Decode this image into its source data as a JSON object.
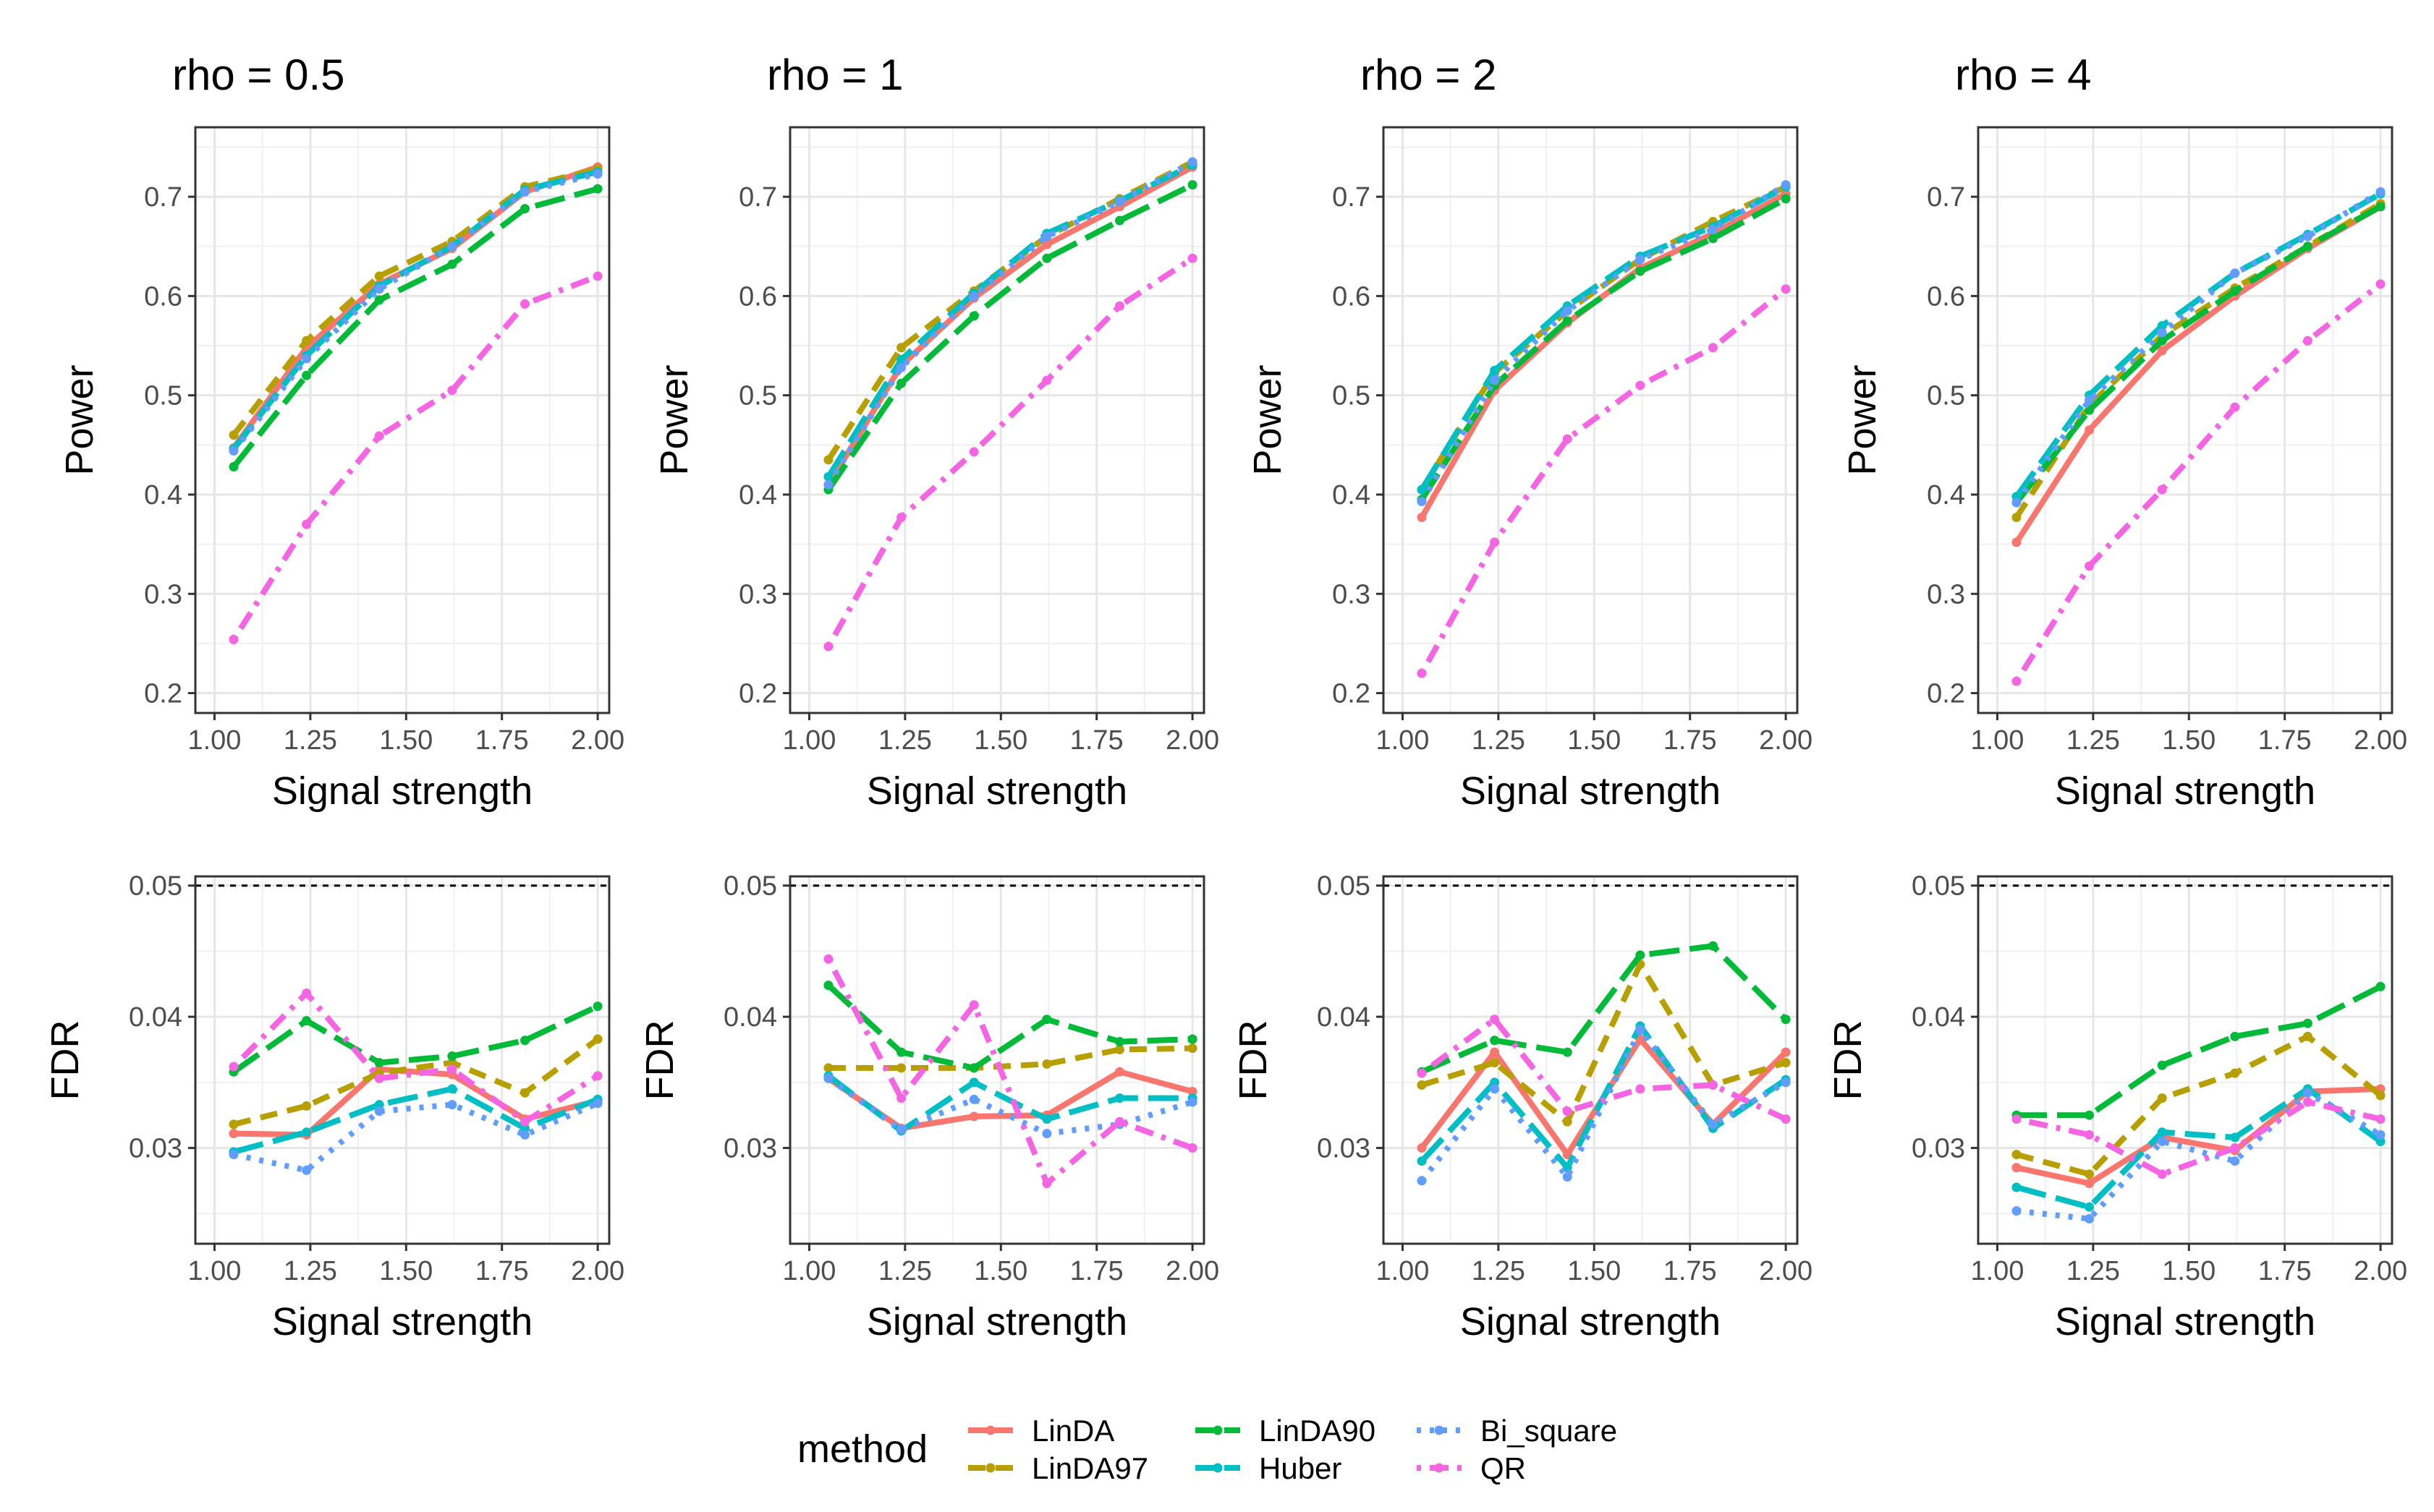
{
  "colors": {
    "LinDA": "#f8766d",
    "LinDA97": "#b79f00",
    "LinDA90": "#00ba38",
    "Huber": "#00bfc4",
    "Bi_square": "#619cff",
    "QR": "#f564e3"
  },
  "legend": {
    "title": "method",
    "items": [
      {
        "name": "LinDA",
        "dash": "solid"
      },
      {
        "name": "LinDA97",
        "dash": "dashed"
      },
      {
        "name": "LinDA90",
        "dash": "longdash"
      },
      {
        "name": "Huber",
        "dash": "longdash"
      },
      {
        "name": "Bi_square",
        "dash": "dotted"
      },
      {
        "name": "QR",
        "dash": "dotdash"
      }
    ]
  },
  "chart_data": [
    {
      "type": "line",
      "metric": "power",
      "title": "rho = 0.5",
      "xlabel": "Signal strength",
      "ylabel": "Power",
      "x": [
        1.05,
        1.24,
        1.43,
        1.62,
        1.81,
        2.0
      ],
      "xticks": [
        "1.00",
        "1.25",
        "1.50",
        "1.75",
        "2.00"
      ],
      "yticks": [
        "0.2",
        "0.3",
        "0.4",
        "0.5",
        "0.6",
        "0.7"
      ],
      "xlim": [
        0.95,
        2.03
      ],
      "ylim": [
        0.18,
        0.77
      ],
      "series": [
        {
          "name": "LinDA",
          "values": [
            0.447,
            0.548,
            0.612,
            0.648,
            0.705,
            0.73
          ]
        },
        {
          "name": "LinDA97",
          "values": [
            0.46,
            0.555,
            0.62,
            0.655,
            0.71,
            0.728
          ]
        },
        {
          "name": "LinDA90",
          "values": [
            0.428,
            0.52,
            0.596,
            0.632,
            0.688,
            0.708
          ]
        },
        {
          "name": "Huber",
          "values": [
            0.446,
            0.54,
            0.61,
            0.65,
            0.707,
            0.725
          ]
        },
        {
          "name": "Bi_square",
          "values": [
            0.444,
            0.537,
            0.607,
            0.65,
            0.705,
            0.723
          ]
        },
        {
          "name": "QR",
          "values": [
            0.254,
            0.37,
            0.459,
            0.505,
            0.592,
            0.62
          ]
        }
      ]
    },
    {
      "type": "line",
      "metric": "power",
      "title": "rho = 1",
      "xlabel": "Signal strength",
      "ylabel": "Power",
      "x": [
        1.05,
        1.24,
        1.43,
        1.62,
        1.81,
        2.0
      ],
      "xticks": [
        "1.00",
        "1.25",
        "1.50",
        "1.75",
        "2.00"
      ],
      "yticks": [
        "0.2",
        "0.3",
        "0.4",
        "0.5",
        "0.6",
        "0.7"
      ],
      "xlim": [
        0.95,
        2.03
      ],
      "ylim": [
        0.18,
        0.77
      ],
      "series": [
        {
          "name": "LinDA",
          "values": [
            0.41,
            0.53,
            0.598,
            0.652,
            0.69,
            0.73
          ]
        },
        {
          "name": "LinDA97",
          "values": [
            0.435,
            0.548,
            0.605,
            0.66,
            0.698,
            0.735
          ]
        },
        {
          "name": "LinDA90",
          "values": [
            0.405,
            0.512,
            0.58,
            0.638,
            0.676,
            0.712
          ]
        },
        {
          "name": "Huber",
          "values": [
            0.418,
            0.536,
            0.603,
            0.663,
            0.696,
            0.732
          ]
        },
        {
          "name": "Bi_square",
          "values": [
            0.41,
            0.528,
            0.6,
            0.66,
            0.695,
            0.735
          ]
        },
        {
          "name": "QR",
          "values": [
            0.247,
            0.377,
            0.443,
            0.515,
            0.59,
            0.638
          ]
        }
      ]
    },
    {
      "type": "line",
      "metric": "power",
      "title": "rho = 2",
      "xlabel": "Signal strength",
      "ylabel": "Power",
      "x": [
        1.05,
        1.24,
        1.43,
        1.62,
        1.81,
        2.0
      ],
      "xticks": [
        "1.00",
        "1.25",
        "1.50",
        "1.75",
        "2.00"
      ],
      "yticks": [
        "0.2",
        "0.3",
        "0.4",
        "0.5",
        "0.6",
        "0.7"
      ],
      "xlim": [
        0.95,
        2.03
      ],
      "ylim": [
        0.18,
        0.77
      ],
      "series": [
        {
          "name": "LinDA",
          "values": [
            0.377,
            0.505,
            0.573,
            0.628,
            0.663,
            0.703
          ]
        },
        {
          "name": "LinDA97",
          "values": [
            0.405,
            0.523,
            0.585,
            0.637,
            0.675,
            0.71
          ]
        },
        {
          "name": "LinDA90",
          "values": [
            0.395,
            0.51,
            0.575,
            0.625,
            0.658,
            0.698
          ]
        },
        {
          "name": "Huber",
          "values": [
            0.405,
            0.525,
            0.59,
            0.64,
            0.67,
            0.71
          ]
        },
        {
          "name": "Bi_square",
          "values": [
            0.393,
            0.515,
            0.585,
            0.637,
            0.667,
            0.712
          ]
        },
        {
          "name": "QR",
          "values": [
            0.22,
            0.352,
            0.456,
            0.51,
            0.548,
            0.607
          ]
        }
      ]
    },
    {
      "type": "line",
      "metric": "power",
      "title": "rho = 4",
      "xlabel": "Signal strength",
      "ylabel": "Power",
      "x": [
        1.05,
        1.24,
        1.43,
        1.62,
        1.81,
        2.0
      ],
      "xticks": [
        "1.00",
        "1.25",
        "1.50",
        "1.75",
        "2.00"
      ],
      "yticks": [
        "0.2",
        "0.3",
        "0.4",
        "0.5",
        "0.6",
        "0.7"
      ],
      "xlim": [
        0.95,
        2.03
      ],
      "ylim": [
        0.18,
        0.77
      ],
      "series": [
        {
          "name": "LinDA",
          "values": [
            0.352,
            0.465,
            0.545,
            0.6,
            0.648,
            0.69
          ]
        },
        {
          "name": "LinDA97",
          "values": [
            0.377,
            0.49,
            0.56,
            0.608,
            0.65,
            0.693
          ]
        },
        {
          "name": "LinDA90",
          "values": [
            0.392,
            0.485,
            0.555,
            0.605,
            0.65,
            0.69
          ]
        },
        {
          "name": "Huber",
          "values": [
            0.398,
            0.5,
            0.57,
            0.623,
            0.662,
            0.703
          ]
        },
        {
          "name": "Bi_square",
          "values": [
            0.392,
            0.495,
            0.563,
            0.623,
            0.66,
            0.705
          ]
        },
        {
          "name": "QR",
          "values": [
            0.212,
            0.328,
            0.405,
            0.488,
            0.555,
            0.612
          ]
        }
      ]
    },
    {
      "type": "line",
      "metric": "fdr",
      "title": "",
      "xlabel": "Signal strength",
      "ylabel": "FDR",
      "x": [
        1.05,
        1.24,
        1.43,
        1.62,
        1.81,
        2.0
      ],
      "xticks": [
        "1.00",
        "1.25",
        "1.50",
        "1.75",
        "2.00"
      ],
      "yticks": [
        "0.03",
        "0.04",
        "0.05"
      ],
      "xlim": [
        0.95,
        2.03
      ],
      "ylim": [
        0.0227,
        0.0507
      ],
      "hline": 0.05,
      "series": [
        {
          "name": "LinDA",
          "values": [
            0.0311,
            0.031,
            0.036,
            0.0356,
            0.0322,
            0.0336
          ]
        },
        {
          "name": "LinDA97",
          "values": [
            0.0318,
            0.0332,
            0.0357,
            0.0365,
            0.0342,
            0.0383
          ]
        },
        {
          "name": "LinDA90",
          "values": [
            0.0358,
            0.0397,
            0.0365,
            0.037,
            0.0382,
            0.0408
          ]
        },
        {
          "name": "Huber",
          "values": [
            0.0297,
            0.0312,
            0.0333,
            0.0345,
            0.0315,
            0.0337
          ]
        },
        {
          "name": "Bi_square",
          "values": [
            0.0295,
            0.0283,
            0.0328,
            0.0333,
            0.031,
            0.0334
          ]
        },
        {
          "name": "QR",
          "values": [
            0.0362,
            0.0418,
            0.0353,
            0.036,
            0.032,
            0.0355
          ]
        }
      ]
    },
    {
      "type": "line",
      "metric": "fdr",
      "title": "",
      "xlabel": "Signal strength",
      "ylabel": "FDR",
      "x": [
        1.05,
        1.24,
        1.43,
        1.62,
        1.81,
        2.0
      ],
      "xticks": [
        "1.00",
        "1.25",
        "1.50",
        "1.75",
        "2.00"
      ],
      "yticks": [
        "0.03",
        "0.04",
        "0.05"
      ],
      "xlim": [
        0.95,
        2.03
      ],
      "ylim": [
        0.0227,
        0.0507
      ],
      "hline": 0.05,
      "series": [
        {
          "name": "LinDA",
          "values": [
            0.0353,
            0.0315,
            0.0324,
            0.0325,
            0.0358,
            0.0343
          ]
        },
        {
          "name": "LinDA97",
          "values": [
            0.0361,
            0.0361,
            0.0361,
            0.0364,
            0.0375,
            0.0376
          ]
        },
        {
          "name": "LinDA90",
          "values": [
            0.0424,
            0.0373,
            0.0361,
            0.0398,
            0.0381,
            0.0383
          ]
        },
        {
          "name": "Huber",
          "values": [
            0.0355,
            0.0313,
            0.035,
            0.0322,
            0.0338,
            0.0338
          ]
        },
        {
          "name": "Bi_square",
          "values": [
            0.0353,
            0.0314,
            0.0337,
            0.0311,
            0.0318,
            0.0335
          ]
        },
        {
          "name": "QR",
          "values": [
            0.0444,
            0.0338,
            0.0409,
            0.0273,
            0.032,
            0.03
          ]
        }
      ]
    },
    {
      "type": "line",
      "metric": "fdr",
      "title": "",
      "xlabel": "Signal strength",
      "ylabel": "FDR",
      "x": [
        1.05,
        1.24,
        1.43,
        1.62,
        1.81,
        2.0
      ],
      "xticks": [
        "1.00",
        "1.25",
        "1.50",
        "1.75",
        "2.00"
      ],
      "yticks": [
        "0.03",
        "0.04",
        "0.05"
      ],
      "xlim": [
        0.95,
        2.03
      ],
      "ylim": [
        0.0227,
        0.0507
      ],
      "hline": 0.05,
      "series": [
        {
          "name": "LinDA",
          "values": [
            0.03,
            0.0373,
            0.0295,
            0.0383,
            0.0318,
            0.0373
          ]
        },
        {
          "name": "LinDA97",
          "values": [
            0.0348,
            0.0365,
            0.032,
            0.044,
            0.0348,
            0.0365
          ]
        },
        {
          "name": "LinDA90",
          "values": [
            0.0358,
            0.0382,
            0.0373,
            0.0447,
            0.0454,
            0.0398
          ]
        },
        {
          "name": "Huber",
          "values": [
            0.029,
            0.035,
            0.0285,
            0.0393,
            0.0315,
            0.0352
          ]
        },
        {
          "name": "Bi_square",
          "values": [
            0.0275,
            0.0345,
            0.0278,
            0.039,
            0.0318,
            0.035
          ]
        },
        {
          "name": "QR",
          "values": [
            0.0357,
            0.0398,
            0.0328,
            0.0345,
            0.0348,
            0.0322
          ]
        }
      ]
    },
    {
      "type": "line",
      "metric": "fdr",
      "title": "",
      "xlabel": "Signal strength",
      "ylabel": "FDR",
      "x": [
        1.05,
        1.24,
        1.43,
        1.62,
        1.81,
        2.0
      ],
      "xticks": [
        "1.00",
        "1.25",
        "1.50",
        "1.75",
        "2.00"
      ],
      "yticks": [
        "0.03",
        "0.04",
        "0.05"
      ],
      "xlim": [
        0.95,
        2.03
      ],
      "ylim": [
        0.0227,
        0.0507
      ],
      "hline": 0.05,
      "series": [
        {
          "name": "LinDA",
          "values": [
            0.0285,
            0.0273,
            0.0308,
            0.0298,
            0.0343,
            0.0345
          ]
        },
        {
          "name": "LinDA97",
          "values": [
            0.0295,
            0.028,
            0.0338,
            0.0357,
            0.0385,
            0.034
          ]
        },
        {
          "name": "LinDA90",
          "values": [
            0.0325,
            0.0325,
            0.0363,
            0.0385,
            0.0395,
            0.0423
          ]
        },
        {
          "name": "Huber",
          "values": [
            0.027,
            0.0255,
            0.0312,
            0.0308,
            0.0345,
            0.0305
          ]
        },
        {
          "name": "Bi_square",
          "values": [
            0.0252,
            0.0246,
            0.0305,
            0.029,
            0.0342,
            0.031
          ]
        },
        {
          "name": "QR",
          "values": [
            0.0322,
            0.031,
            0.028,
            0.03,
            0.0335,
            0.0322
          ]
        }
      ]
    }
  ]
}
